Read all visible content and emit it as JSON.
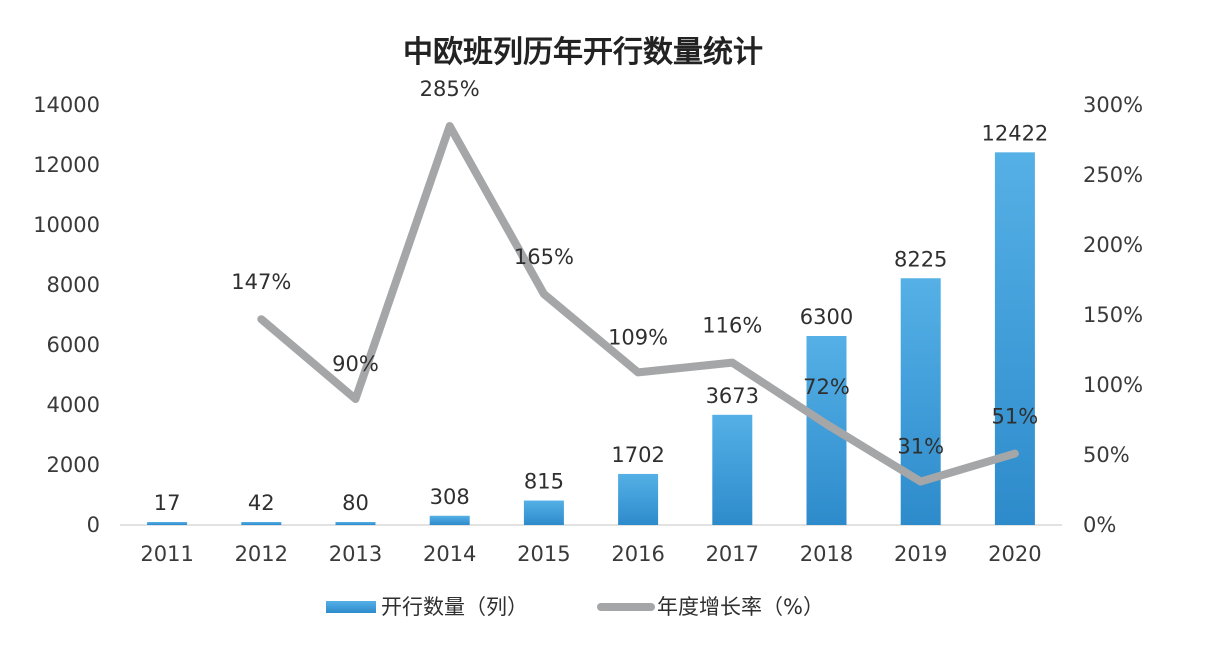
{
  "chart_data": {
    "type": "bar+line",
    "title": "中欧班列历年开行数量统计",
    "categories": [
      "2011",
      "2012",
      "2013",
      "2014",
      "2015",
      "2016",
      "2017",
      "2018",
      "2019",
      "2020"
    ],
    "series": [
      {
        "name": "开行数量（列）",
        "type": "bar",
        "axis": "left",
        "color": "#3d9bd6",
        "values": [
          17,
          42,
          80,
          308,
          815,
          1702,
          3673,
          6300,
          8225,
          12422
        ],
        "labels": [
          "17",
          "42",
          "80",
          "308",
          "815",
          "1702",
          "3673",
          "6300",
          "8225",
          "12422"
        ]
      },
      {
        "name": "年度增长率（%）",
        "type": "line",
        "axis": "right",
        "color": "#a4a6a8",
        "values": [
          null,
          147,
          90,
          285,
          165,
          109,
          116,
          72,
          31,
          51
        ],
        "labels": [
          null,
          "147%",
          "90%",
          "285%",
          "165%",
          "109%",
          "116%",
          "72%",
          "31%",
          "51%"
        ]
      }
    ],
    "y_left": {
      "min": 0,
      "max": 14000,
      "ticks": [
        "0",
        "2000",
        "4000",
        "6000",
        "8000",
        "10000",
        "12000",
        "14000"
      ]
    },
    "y_right": {
      "min": 0,
      "max": 300,
      "ticks": [
        "0%",
        "50%",
        "100%",
        "150%",
        "200%",
        "250%",
        "300%"
      ]
    },
    "grid": false,
    "legend": "bottom"
  }
}
